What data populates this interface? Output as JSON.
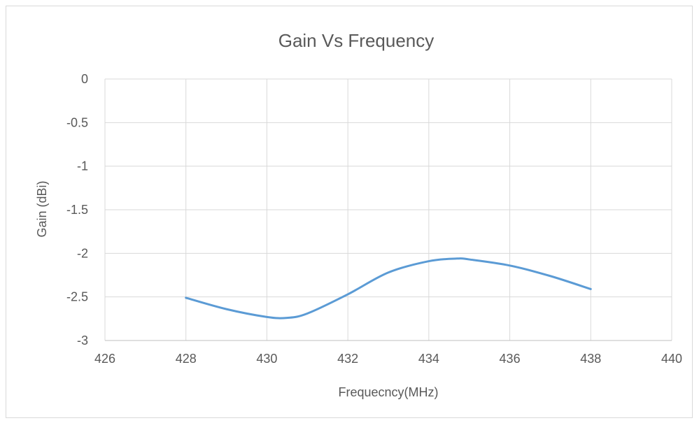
{
  "chart_data": {
    "type": "line",
    "title": "Gain Vs Frequency",
    "xlabel": "Frequecncy(MHz)",
    "ylabel": "Gain (dBi)",
    "xlim": [
      426,
      440
    ],
    "ylim": [
      -3,
      0
    ],
    "xticks": [
      "426",
      "428",
      "430",
      "432",
      "434",
      "436",
      "438",
      "440"
    ],
    "yticks": [
      "0",
      "-0.5",
      "-1",
      "-1.5",
      "-2",
      "-2.5",
      "-3"
    ],
    "grid": true,
    "legend": "none",
    "series": [
      {
        "color": "#5b9bd5",
        "x": [
          428,
          429,
          430,
          430.5,
          431,
          432,
          433,
          434,
          434.7,
          435,
          436,
          437,
          438
        ],
        "y": [
          -2.51,
          -2.64,
          -2.73,
          -2.74,
          -2.69,
          -2.47,
          -2.22,
          -2.09,
          -2.06,
          -2.07,
          -2.14,
          -2.26,
          -2.41
        ]
      }
    ]
  }
}
